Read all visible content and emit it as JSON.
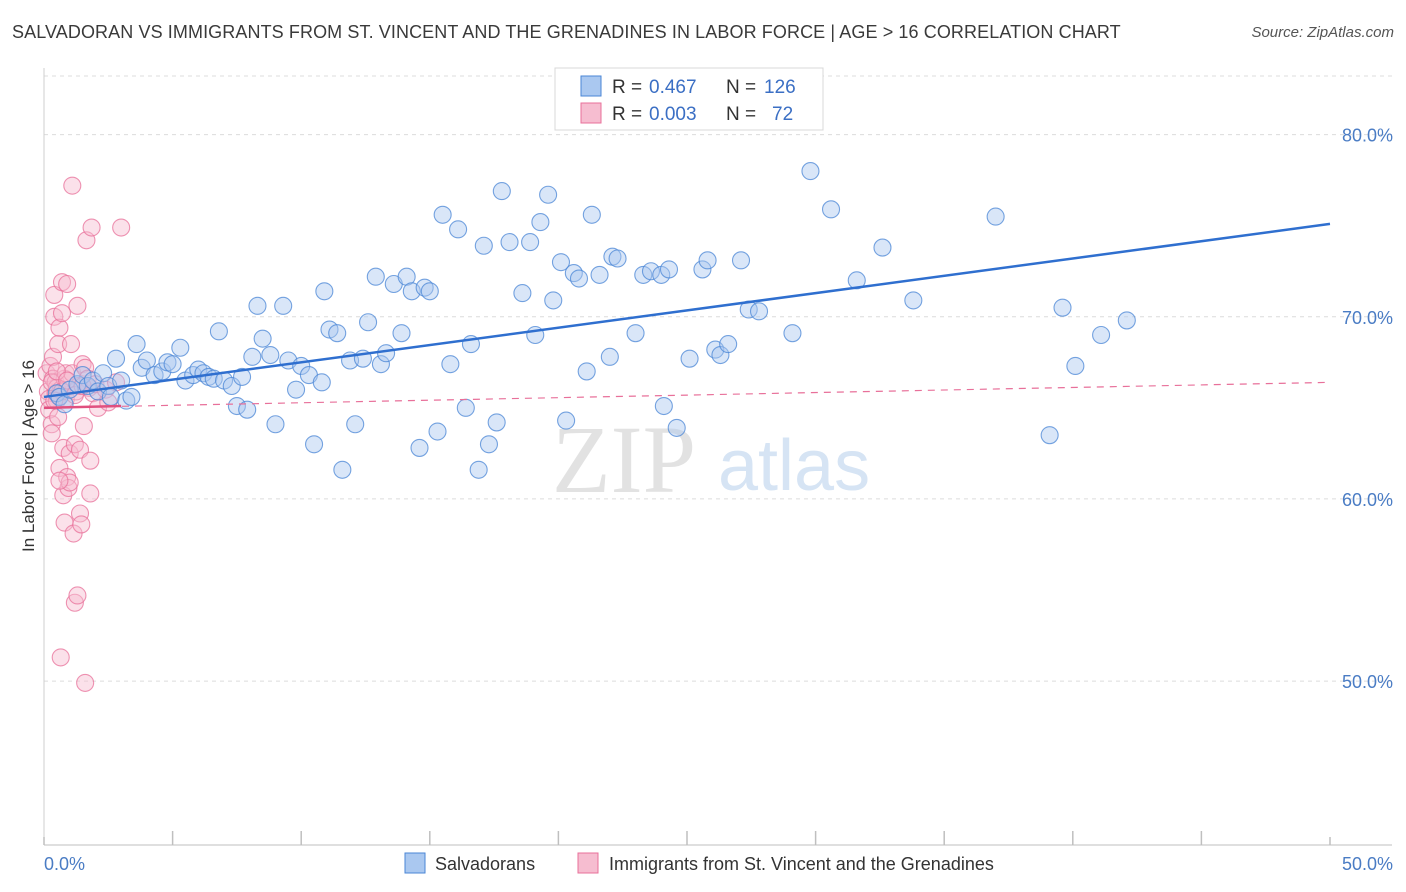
{
  "title": "SALVADORAN VS IMMIGRANTS FROM ST. VINCENT AND THE GRENADINES IN LABOR FORCE | AGE > 16 CORRELATION CHART",
  "source": "Source: ZipAtlas.com",
  "watermark": {
    "zip": "ZIP",
    "atlas": "atlas"
  },
  "chart_data": {
    "type": "scatter",
    "ylabel": "In Labor Force | Age > 16",
    "xlim": [
      0,
      50
    ],
    "ylim": [
      41,
      83
    ],
    "x_tick_labels": [
      "0.0%",
      "50.0%"
    ],
    "y_ticks": [
      50,
      60,
      70,
      80
    ],
    "y_tick_labels": [
      "50.0%",
      "60.0%",
      "70.0%",
      "80.0%"
    ],
    "grid": true,
    "legend_placement": "top-center",
    "legend": [
      {
        "r_label": "R =",
        "r_value": "0.467",
        "n_label": "N =",
        "n_value": "126"
      },
      {
        "r_label": "R =",
        "r_value": "0.003",
        "n_label": "N =",
        "n_value": "72"
      }
    ],
    "series": [
      {
        "name": "Salvadorans",
        "color": "#4a86d6",
        "fill": "#aac8f0",
        "trend": {
          "x": [
            0.0,
            50.0
          ],
          "y": [
            65.6,
            75.1
          ],
          "style": "solid"
        },
        "points": [
          [
            0.5,
            65.8
          ],
          [
            0.6,
            65.6
          ],
          [
            0.8,
            65.2
          ],
          [
            1.0,
            66.0
          ],
          [
            1.3,
            66.3
          ],
          [
            1.5,
            66.8
          ],
          [
            1.7,
            66.2
          ],
          [
            1.9,
            66.5
          ],
          [
            2.1,
            65.9
          ],
          [
            2.3,
            66.9
          ],
          [
            2.5,
            66.2
          ],
          [
            2.6,
            65.6
          ],
          [
            2.8,
            67.7
          ],
          [
            3.0,
            66.5
          ],
          [
            3.2,
            65.4
          ],
          [
            3.4,
            65.6
          ],
          [
            3.6,
            68.5
          ],
          [
            3.8,
            67.2
          ],
          [
            4.0,
            67.6
          ],
          [
            4.3,
            66.8
          ],
          [
            4.6,
            67.0
          ],
          [
            4.8,
            67.5
          ],
          [
            5.0,
            67.4
          ],
          [
            5.3,
            68.3
          ],
          [
            5.5,
            66.5
          ],
          [
            5.8,
            66.8
          ],
          [
            6.0,
            67.1
          ],
          [
            6.2,
            66.9
          ],
          [
            6.4,
            66.7
          ],
          [
            6.6,
            66.6
          ],
          [
            6.8,
            69.2
          ],
          [
            7.0,
            66.5
          ],
          [
            7.3,
            66.2
          ],
          [
            7.5,
            65.1
          ],
          [
            7.7,
            66.7
          ],
          [
            7.9,
            64.9
          ],
          [
            8.1,
            67.8
          ],
          [
            8.3,
            70.6
          ],
          [
            8.5,
            68.8
          ],
          [
            8.8,
            67.9
          ],
          [
            9.0,
            64.1
          ],
          [
            9.3,
            70.6
          ],
          [
            9.5,
            67.6
          ],
          [
            9.8,
            66.0
          ],
          [
            10.0,
            67.3
          ],
          [
            10.3,
            66.8
          ],
          [
            10.5,
            63.0
          ],
          [
            10.8,
            66.4
          ],
          [
            10.9,
            71.4
          ],
          [
            11.1,
            69.3
          ],
          [
            11.4,
            69.1
          ],
          [
            11.6,
            61.6
          ],
          [
            11.9,
            67.6
          ],
          [
            12.1,
            64.1
          ],
          [
            12.4,
            67.7
          ],
          [
            12.6,
            69.7
          ],
          [
            12.9,
            72.2
          ],
          [
            13.1,
            67.4
          ],
          [
            13.3,
            68.0
          ],
          [
            13.6,
            71.8
          ],
          [
            13.9,
            69.1
          ],
          [
            14.1,
            72.2
          ],
          [
            14.3,
            71.4
          ],
          [
            14.6,
            62.8
          ],
          [
            14.8,
            71.6
          ],
          [
            15.0,
            71.4
          ],
          [
            15.3,
            63.7
          ],
          [
            15.5,
            75.6
          ],
          [
            15.8,
            67.4
          ],
          [
            16.1,
            74.8
          ],
          [
            16.4,
            65.0
          ],
          [
            16.6,
            68.5
          ],
          [
            16.9,
            61.6
          ],
          [
            17.1,
            73.9
          ],
          [
            17.3,
            63.0
          ],
          [
            17.6,
            64.2
          ],
          [
            17.8,
            76.9
          ],
          [
            18.1,
            74.1
          ],
          [
            18.6,
            71.3
          ],
          [
            18.9,
            74.1
          ],
          [
            19.1,
            69.0
          ],
          [
            19.3,
            75.2
          ],
          [
            19.6,
            76.7
          ],
          [
            19.8,
            70.9
          ],
          [
            20.1,
            73.0
          ],
          [
            20.3,
            64.3
          ],
          [
            20.6,
            72.4
          ],
          [
            20.8,
            72.1
          ],
          [
            21.1,
            67.0
          ],
          [
            21.3,
            75.6
          ],
          [
            21.6,
            72.3
          ],
          [
            22.0,
            67.8
          ],
          [
            22.1,
            73.3
          ],
          [
            22.3,
            73.2
          ],
          [
            23.0,
            69.1
          ],
          [
            23.3,
            72.3
          ],
          [
            23.6,
            72.5
          ],
          [
            24.0,
            72.3
          ],
          [
            24.1,
            65.1
          ],
          [
            24.3,
            72.6
          ],
          [
            24.6,
            63.9
          ],
          [
            25.1,
            67.7
          ],
          [
            25.6,
            72.6
          ],
          [
            25.8,
            73.1
          ],
          [
            26.1,
            68.2
          ],
          [
            26.3,
            67.9
          ],
          [
            26.6,
            68.5
          ],
          [
            27.1,
            73.1
          ],
          [
            27.4,
            70.4
          ],
          [
            27.8,
            70.3
          ],
          [
            29.1,
            69.1
          ],
          [
            29.8,
            78.0
          ],
          [
            30.6,
            75.9
          ],
          [
            31.6,
            72.0
          ],
          [
            32.6,
            73.8
          ],
          [
            33.8,
            70.9
          ],
          [
            37.0,
            75.5
          ],
          [
            39.1,
            63.5
          ],
          [
            39.6,
            70.5
          ],
          [
            40.1,
            67.3
          ],
          [
            41.1,
            69.0
          ],
          [
            42.1,
            69.8
          ]
        ]
      },
      {
        "name": "Immigrants from St. Vincent and the Grenadines",
        "color": "#e8709a",
        "fill": "#f6bdd0",
        "trend": {
          "x": [
            0.0,
            3.0
          ],
          "y": [
            65.0,
            65.1
          ],
          "style": "solid",
          "ext_x": [
            0.0,
            50.0
          ],
          "ext_y": [
            65.0,
            66.4
          ],
          "ext_style": "dashed"
        },
        "points": [
          [
            0.1,
            66.9
          ],
          [
            0.15,
            65.9
          ],
          [
            0.2,
            65.5
          ],
          [
            0.2,
            64.9
          ],
          [
            0.25,
            67.3
          ],
          [
            0.3,
            64.1
          ],
          [
            0.3,
            63.6
          ],
          [
            0.35,
            66.6
          ],
          [
            0.35,
            67.8
          ],
          [
            0.4,
            70.0
          ],
          [
            0.4,
            71.2
          ],
          [
            0.45,
            66.4
          ],
          [
            0.45,
            65.8
          ],
          [
            0.5,
            66.1
          ],
          [
            0.5,
            65.4
          ],
          [
            0.55,
            64.5
          ],
          [
            0.55,
            68.5
          ],
          [
            0.6,
            69.4
          ],
          [
            0.6,
            61.7
          ],
          [
            0.65,
            66.0
          ],
          [
            0.65,
            51.3
          ],
          [
            0.7,
            70.2
          ],
          [
            0.7,
            71.9
          ],
          [
            0.75,
            60.2
          ],
          [
            0.75,
            62.8
          ],
          [
            0.8,
            66.6
          ],
          [
            0.8,
            58.7
          ],
          [
            0.85,
            66.9
          ],
          [
            0.85,
            65.5
          ],
          [
            0.9,
            61.2
          ],
          [
            0.9,
            71.8
          ],
          [
            0.95,
            60.6
          ],
          [
            1.0,
            60.9
          ],
          [
            1.0,
            62.5
          ],
          [
            1.05,
            68.5
          ],
          [
            1.1,
            66.9
          ],
          [
            1.1,
            77.2
          ],
          [
            1.15,
            58.1
          ],
          [
            1.2,
            63.0
          ],
          [
            1.2,
            54.3
          ],
          [
            1.25,
            65.9
          ],
          [
            1.3,
            70.6
          ],
          [
            1.3,
            54.7
          ],
          [
            1.35,
            66.2
          ],
          [
            1.4,
            59.2
          ],
          [
            1.4,
            62.7
          ],
          [
            1.45,
            58.6
          ],
          [
            1.5,
            67.4
          ],
          [
            1.55,
            64.0
          ],
          [
            1.6,
            67.2
          ],
          [
            1.6,
            49.9
          ],
          [
            1.65,
            74.2
          ],
          [
            1.7,
            66.6
          ],
          [
            1.75,
            66.1
          ],
          [
            1.8,
            62.1
          ],
          [
            1.8,
            60.3
          ],
          [
            1.85,
            74.9
          ],
          [
            1.9,
            65.8
          ],
          [
            2.0,
            66.3
          ],
          [
            2.1,
            65.0
          ],
          [
            2.4,
            66.0
          ],
          [
            2.5,
            65.3
          ],
          [
            2.8,
            66.4
          ],
          [
            3.0,
            74.9
          ],
          [
            0.3,
            66.4
          ],
          [
            0.5,
            67.0
          ],
          [
            0.7,
            65.9
          ],
          [
            0.9,
            66.5
          ],
          [
            1.2,
            65.7
          ],
          [
            1.5,
            66.2
          ],
          [
            0.4,
            65.4
          ],
          [
            0.6,
            61.0
          ]
        ]
      }
    ]
  }
}
